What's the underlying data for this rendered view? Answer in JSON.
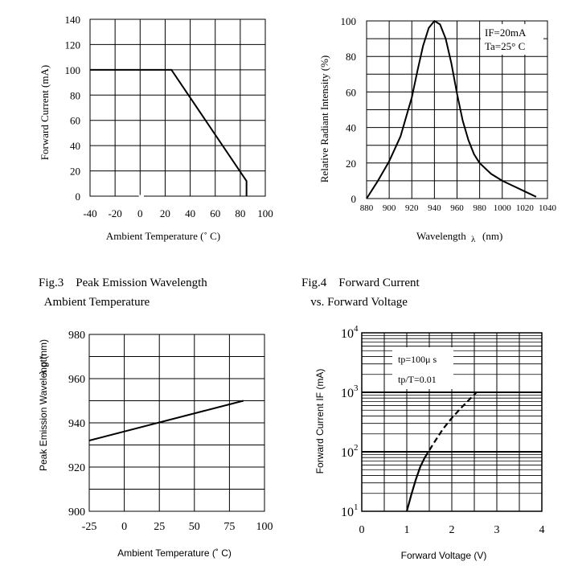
{
  "figures": {
    "fig3_caption": [
      "Fig.3    Peak Emission Wavelength",
      "  Ambient Temperature"
    ],
    "fig4_caption": [
      "Fig.4    Forward Current",
      "   vs. Forward Voltage"
    ]
  },
  "chart_data": [
    {
      "type": "line",
      "title": "",
      "xlabel": "Ambient Temperature (˚ C)",
      "ylabel": "Forward Current (mA)",
      "xlim": [
        -40,
        100
      ],
      "ylim": [
        0,
        140
      ],
      "x_ticks": [
        "-40",
        "-20",
        "0",
        "20",
        "40",
        "60",
        "80",
        "100"
      ],
      "y_ticks": [
        "0",
        "20",
        "40",
        "60",
        "80",
        "100",
        "120",
        "140"
      ],
      "grid": true,
      "series": [
        {
          "x": [
            -40,
            25,
            85,
            85
          ],
          "y": [
            100,
            100,
            12,
            0
          ]
        }
      ]
    },
    {
      "type": "line",
      "title": "",
      "xlabel": "Wavelength",
      "xlabel_symbol": "λ",
      "xlabel_unit": "(nm)",
      "ylabel": "Relative Radiant Intensity (%)",
      "xlim": [
        880,
        1040
      ],
      "ylim": [
        0,
        100
      ],
      "x_ticks": [
        "880",
        "900",
        "920",
        "940",
        "960",
        "980",
        "1000",
        "1020",
        "1040"
      ],
      "y_ticks": [
        "0",
        "20",
        "40",
        "60",
        "80",
        "100"
      ],
      "annotation": [
        "IF=20mA",
        "Ta=25°  C"
      ],
      "grid": true,
      "series": [
        {
          "x": [
            880,
            890,
            900,
            910,
            920,
            925,
            930,
            935,
            940,
            945,
            950,
            955,
            960,
            965,
            970,
            975,
            980,
            990,
            1000,
            1010,
            1020,
            1030
          ],
          "y": [
            0,
            10,
            21,
            35,
            57,
            72,
            86,
            96,
            100,
            98,
            90,
            76,
            59,
            44,
            33,
            25,
            20,
            14,
            10,
            7,
            4,
            1
          ]
        }
      ]
    },
    {
      "type": "line",
      "title": "",
      "xlabel": "Ambient Temperature (˚ C)",
      "ylabel": "Peak Emission Wavelength",
      "ylabel_symbol": "λ p (nm)",
      "xlim": [
        -25,
        100
      ],
      "ylim": [
        900,
        980
      ],
      "x_ticks": [
        "-25",
        "0",
        "25",
        "50",
        "75",
        "100"
      ],
      "y_ticks": [
        "900",
        "920",
        "940",
        "960",
        "980"
      ],
      "grid": true,
      "series": [
        {
          "x": [
            -25,
            85
          ],
          "y": [
            932,
            950
          ]
        }
      ]
    },
    {
      "type": "line",
      "title": "",
      "xlabel": "Forward Voltage (V)",
      "ylabel": "Forward Current IF (mA)",
      "xlim": [
        0,
        4
      ],
      "ylim": [
        10,
        10000
      ],
      "y_scale": "log",
      "x_ticks": [
        "0",
        "1",
        "2",
        "3",
        "4"
      ],
      "y_ticks": [
        "10^1",
        "10^2",
        "10^3",
        "10^4"
      ],
      "annotation": [
        "tp=100μ s",
        "tp/T=0.01"
      ],
      "grid": true,
      "series": [
        {
          "style": "solid",
          "x": [
            1.0,
            1.1,
            1.2,
            1.3,
            1.4
          ],
          "y": [
            10,
            19,
            34,
            56,
            80
          ]
        },
        {
          "style": "dashed",
          "x": [
            1.4,
            1.6,
            1.8,
            2.0,
            2.2,
            2.4,
            2.55
          ],
          "y": [
            80,
            140,
            240,
            370,
            540,
            770,
            1000
          ]
        }
      ]
    }
  ]
}
